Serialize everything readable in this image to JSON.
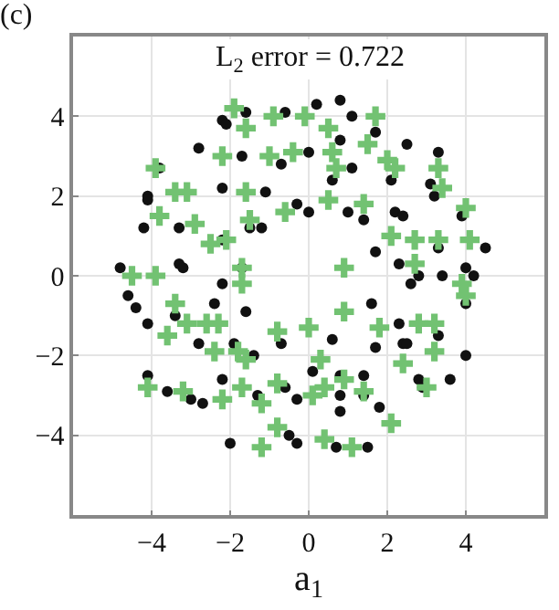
{
  "chart_data": {
    "type": "scatter",
    "title": "(c)",
    "xlabel": "a$_{1}$",
    "annotations": [
      "L$_{2}$ error = 0.722"
    ],
    "xlim": [
      -6,
      6
    ],
    "ylim": [
      -6,
      6
    ],
    "xticks": [
      -4,
      -2,
      0,
      2,
      4
    ],
    "yticks": [
      -4,
      -2,
      0,
      2,
      4
    ],
    "grid": true,
    "series": [
      {
        "color": "#111111",
        "marker": "circle",
        "x": [
          -2.2,
          -2.1,
          -1.6,
          -0.6,
          -2.8,
          -1.7,
          -0.7,
          -3.8,
          -4.1,
          -4.1,
          -2.2,
          -1.1,
          -0.3,
          0,
          -4.2,
          -3.3,
          -2.2,
          -1.5,
          -1.2,
          -4.8,
          -3.3,
          -3.2,
          -1.7,
          0.2,
          0.8,
          1.1,
          1.7,
          0.8,
          0,
          2.5,
          3.3,
          1.1,
          0.6,
          2.1,
          3.1,
          3.2,
          1.0,
          1.4,
          2.2,
          2.4,
          3.9,
          1.7,
          2.3,
          3.3,
          4.5,
          2.8,
          3.4,
          4.0,
          4.2,
          -4.6,
          -4.4,
          -4.1,
          -3.4,
          -2.4,
          -2.2,
          -1.6,
          -2.8,
          -1.9,
          -1.4,
          -0.7,
          -4.1,
          -3.6,
          -3.0,
          -2.7,
          -2.2,
          -1.3,
          -0.6,
          -0.3,
          -2.0,
          -0.5,
          -0.3,
          0.1,
          1.6,
          2.3,
          1.7,
          2.4,
          2.5,
          3.3,
          4.0,
          2.8,
          3.6,
          2.9,
          0.6,
          0.8,
          1.4,
          0.8,
          1.4,
          0.8,
          1.8,
          0.7,
          1.5,
          2.6,
          4.0
        ],
        "values": [
          3.9,
          3.8,
          4.1,
          4.1,
          3.2,
          3.0,
          2.8,
          2.7,
          2.0,
          1.9,
          2.2,
          2.1,
          1.8,
          1.6,
          1.2,
          1.2,
          0.9,
          1.2,
          1.2,
          0.2,
          0.3,
          0.2,
          0.2,
          4.3,
          4.4,
          4.0,
          3.6,
          3.4,
          3.1,
          3.3,
          3.1,
          2.7,
          2.4,
          2.4,
          2.3,
          2.0,
          1.6,
          1.4,
          1.6,
          1.5,
          1.5,
          0.6,
          0.3,
          0.7,
          0.7,
          0.0,
          0.0,
          0.2,
          0.0,
          -0.5,
          -0.8,
          -1.2,
          -1.0,
          -0.7,
          -0.2,
          -0.9,
          -1.7,
          -1.7,
          -2.0,
          -1.7,
          -2.5,
          -2.9,
          -3.1,
          -3.2,
          -2.6,
          -3.0,
          -2.8,
          -3.1,
          -4.2,
          -4.0,
          -4.2,
          -2.4,
          -0.7,
          -1.2,
          -1.8,
          -1.7,
          -1.7,
          -1.5,
          -2.0,
          -2.6,
          -2.6,
          -2.8,
          -1.6,
          -2.5,
          -2.5,
          -3.0,
          -3.0,
          -3.4,
          -3.3,
          -4.3,
          -4.3,
          -0.2,
          -0.7
        ]
      },
      {
        "color": "#72c272",
        "marker": "cross",
        "x": [
          -1.9,
          -1.6,
          -0.9,
          -0.1,
          -2.2,
          -1.0,
          -0.4,
          -3.9,
          -3.1,
          -3.4,
          -1.6,
          -0.6,
          -3.8,
          -2.9,
          -2.5,
          -2.1,
          -1.5,
          -1.7,
          -3.9,
          -4.5,
          0.5,
          1.7,
          1.5,
          0.6,
          0.7,
          2.0,
          2.2,
          3.3,
          3.4,
          4.0,
          0.5,
          1.4,
          2.1,
          2.7,
          3.3,
          4.1,
          0.9,
          2.7,
          -3.4,
          -3.1,
          -2.6,
          -2.3,
          -3.6,
          -2.4,
          -1.8,
          -1.6,
          -0.8,
          -4.1,
          -3.2,
          -2.2,
          -1.7,
          -0.8,
          -1.2,
          -0.8,
          -1.2,
          -1.7,
          3.9,
          4.0,
          0.9,
          0,
          1.8,
          2.8,
          3.2,
          2.4,
          3.0,
          3.2,
          0.3,
          0.4,
          0.1,
          0.9,
          1.4,
          2.1,
          0.4,
          1.1
        ],
        "values": [
          4.2,
          3.7,
          4.0,
          4.0,
          3.0,
          3.0,
          3.1,
          2.7,
          2.1,
          2.1,
          2.1,
          1.6,
          1.5,
          1.3,
          0.8,
          0.9,
          1.4,
          0.2,
          0.0,
          0.0,
          3.7,
          4.0,
          3.3,
          3.1,
          2.7,
          2.9,
          2.7,
          2.7,
          2.2,
          1.7,
          1.9,
          1.8,
          1.0,
          0.9,
          0.9,
          0.9,
          0.2,
          0.3,
          -0.7,
          -1.2,
          -1.2,
          -1.2,
          -1.5,
          -1.9,
          -1.9,
          -2.1,
          -1.4,
          -2.8,
          -2.9,
          -3.1,
          -2.8,
          -2.7,
          -3.2,
          -3.8,
          -4.3,
          -0.2,
          -0.2,
          -0.5,
          -0.9,
          -1.3,
          -1.3,
          -1.2,
          -1.2,
          -2.2,
          -2.8,
          -1.9,
          -2.1,
          -2.8,
          -3.0,
          -2.6,
          -2.9,
          -3.7,
          -4.1,
          -4.3
        ]
      }
    ]
  }
}
